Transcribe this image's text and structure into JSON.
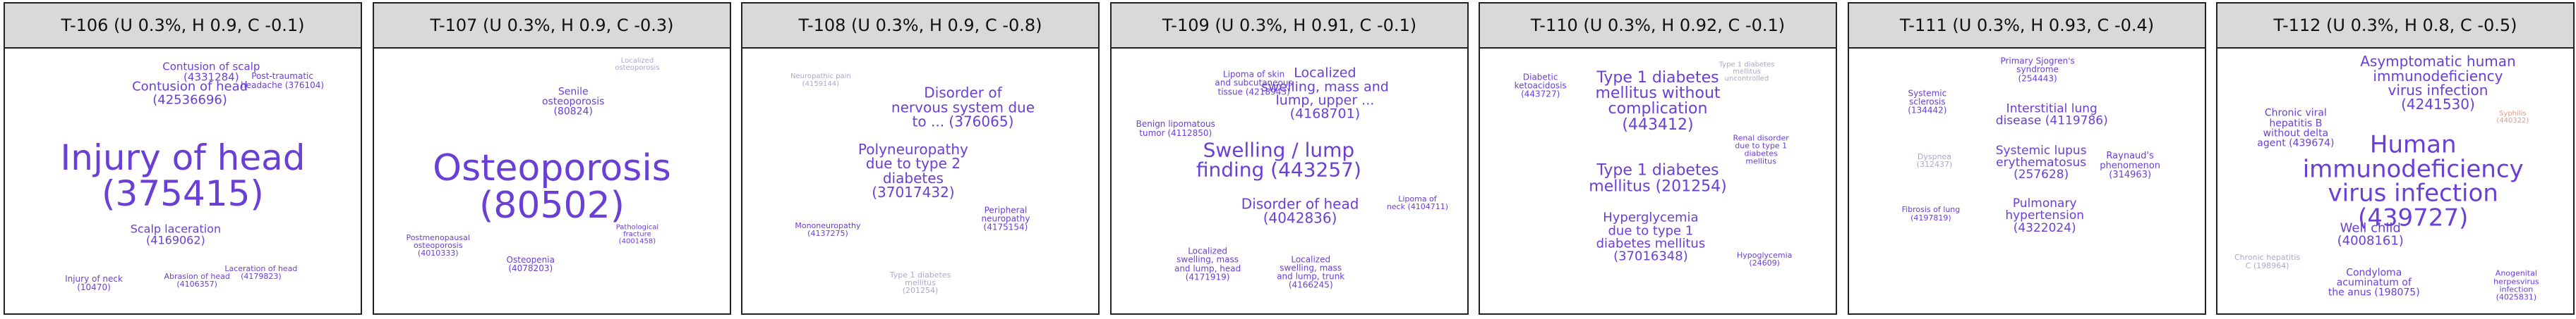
{
  "colors": {
    "primary": "#6a3fd6",
    "muted": "#a9a9cc",
    "accent": "#e59a83",
    "header_bg": "#d9d9d9"
  },
  "panels": [
    {
      "title": "T-106 (U 0.3%, H 0.9, C -0.1)",
      "words": [
        {
          "text": "Injury of head\n(375415)",
          "size": 50,
          "tone": "primary"
        },
        {
          "text": "Contusion of head\n(42536696)",
          "size": 18,
          "tone": "primary"
        },
        {
          "text": "Contusion of scalp\n(4331284)",
          "size": 15,
          "tone": "primary"
        },
        {
          "text": "Scalp laceration\n(4169062)",
          "size": 16,
          "tone": "primary"
        },
        {
          "text": "Post-traumatic\nheadache (376104)",
          "size": 12,
          "tone": "primary"
        },
        {
          "text": "Injury of neck\n(10470)",
          "size": 12,
          "tone": "primary"
        },
        {
          "text": "Laceration of head\n(4179823)",
          "size": 11,
          "tone": "primary"
        },
        {
          "text": "Abrasion of head\n(4106357)",
          "size": 11,
          "tone": "primary"
        }
      ]
    },
    {
      "title": "T-107 (U 0.3%, H 0.9, C -0.3)",
      "words": [
        {
          "text": "Osteoporosis\n(80502)",
          "size": 52,
          "tone": "primary"
        },
        {
          "text": "Senile\nosteoporosis\n(80824)",
          "size": 14,
          "tone": "primary"
        },
        {
          "text": "Osteopenia\n(4078203)",
          "size": 12,
          "tone": "primary"
        },
        {
          "text": "Postmenopausal\nosteoporosis\n(4010333)",
          "size": 11,
          "tone": "primary"
        },
        {
          "text": "Pathological\nfracture\n(4001458)",
          "size": 10,
          "tone": "primary"
        },
        {
          "text": "Localized\nosteoporosis",
          "size": 10,
          "tone": "muted"
        }
      ]
    },
    {
      "title": "T-108 (U 0.3%, H 0.9, C -0.8)",
      "words": [
        {
          "text": "Disorder of\nnervous system due\nto ... (376065)",
          "size": 20,
          "tone": "primary"
        },
        {
          "text": "Polyneuropathy\ndue to type 2\ndiabetes\n(37017432)",
          "size": 20,
          "tone": "primary"
        },
        {
          "text": "Peripheral\nneuropathy\n(4175154)",
          "size": 12,
          "tone": "primary"
        },
        {
          "text": "Mononeuropathy\n(4137275)",
          "size": 11,
          "tone": "primary"
        },
        {
          "text": "Type 1 diabetes\nmellitus\n(201254)",
          "size": 11,
          "tone": "muted"
        },
        {
          "text": "Neuropathic pain\n(4159144)",
          "size": 10,
          "tone": "muted"
        }
      ]
    },
    {
      "title": "T-109 (U 0.3%, H 0.91, C -0.1)",
      "words": [
        {
          "text": "Localized\nswelling, mass and\nlump, upper ...\n(4168701)",
          "size": 19,
          "tone": "primary"
        },
        {
          "text": "Swelling / lump\nfinding (443257)",
          "size": 28,
          "tone": "primary"
        },
        {
          "text": "Disorder of head\n(4042836)",
          "size": 20,
          "tone": "primary"
        },
        {
          "text": "Lipoma of skin\nand subcutaneous\ntissue (4218943)",
          "size": 12,
          "tone": "primary"
        },
        {
          "text": "Benign lipomatous\ntumor (4112850)",
          "size": 12,
          "tone": "primary"
        },
        {
          "text": "Localized\nswelling, mass\nand lump, head\n(4171919)",
          "size": 12,
          "tone": "primary"
        },
        {
          "text": "Localized\nswelling, mass\nand lump, trunk\n(4166245)",
          "size": 12,
          "tone": "primary"
        },
        {
          "text": "Lipoma of\nneck (4104711)",
          "size": 11,
          "tone": "primary"
        }
      ]
    },
    {
      "title": "T-110 (U 0.3%, H 0.92, C -0.1)",
      "words": [
        {
          "text": "Type 1 diabetes\nmellitus without\ncomplication\n(443412)",
          "size": 22,
          "tone": "primary"
        },
        {
          "text": "Type 1 diabetes\nmellitus (201254)",
          "size": 22,
          "tone": "primary"
        },
        {
          "text": "Hyperglycemia\ndue to type 1\ndiabetes mellitus\n(37016348)",
          "size": 18,
          "tone": "primary"
        },
        {
          "text": "Diabetic\nketoacidosis\n(443727)",
          "size": 12,
          "tone": "primary"
        },
        {
          "text": "Renal disorder\ndue to type 1\ndiabetes\nmellitus",
          "size": 11,
          "tone": "primary"
        },
        {
          "text": "Hypoglycemia\n(24609)",
          "size": 11,
          "tone": "primary"
        },
        {
          "text": "Type 1 diabetes\nmellitus\nuncontrolled",
          "size": 10,
          "tone": "muted"
        }
      ]
    },
    {
      "title": "T-111 (U 0.3%, H 0.93, C -0.4)",
      "words": [
        {
          "text": "Interstitial lung\ndisease (4119786)",
          "size": 17,
          "tone": "primary"
        },
        {
          "text": "Systemic lupus\nerythematosus\n(257628)",
          "size": 17,
          "tone": "primary"
        },
        {
          "text": "Pulmonary\nhypertension\n(4322024)",
          "size": 17,
          "tone": "primary"
        },
        {
          "text": "Raynaud's\nphenomenon\n(314963)",
          "size": 13,
          "tone": "primary"
        },
        {
          "text": "Systemic\nsclerosis\n(134442)",
          "size": 12,
          "tone": "primary"
        },
        {
          "text": "Primary Sjogren's\nsyndrome\n(254443)",
          "size": 12,
          "tone": "primary"
        },
        {
          "text": "Dyspnea\n(312437)",
          "size": 11,
          "tone": "muted"
        },
        {
          "text": "Fibrosis of lung\n(4197819)",
          "size": 11,
          "tone": "primary"
        }
      ]
    },
    {
      "title": "T-112 (U 0.3%, H 0.8, C -0.5)",
      "words": [
        {
          "text": "Asymptomatic human\nimmunodeficiency\nvirus infection\n(4241530)",
          "size": 20,
          "tone": "primary"
        },
        {
          "text": "Human\nimmunodeficiency\nvirus infection\n(439727)",
          "size": 34,
          "tone": "primary"
        },
        {
          "text": "Chronic viral\nhepatitis B\nwithout delta\nagent (439674)",
          "size": 14,
          "tone": "primary"
        },
        {
          "text": "Well child\n(4008161)",
          "size": 18,
          "tone": "primary"
        },
        {
          "text": "Condyloma\nacuminatum of\nthe anus (198075)",
          "size": 14,
          "tone": "primary"
        },
        {
          "text": "Anogenital\nherpesvirus\ninfection\n(4025831)",
          "size": 11,
          "tone": "primary"
        },
        {
          "text": "Chronic hepatitis\nC (198964)",
          "size": 11,
          "tone": "muted"
        },
        {
          "text": "Syphilis\n(440322)",
          "size": 10,
          "tone": "accent"
        }
      ]
    }
  ]
}
